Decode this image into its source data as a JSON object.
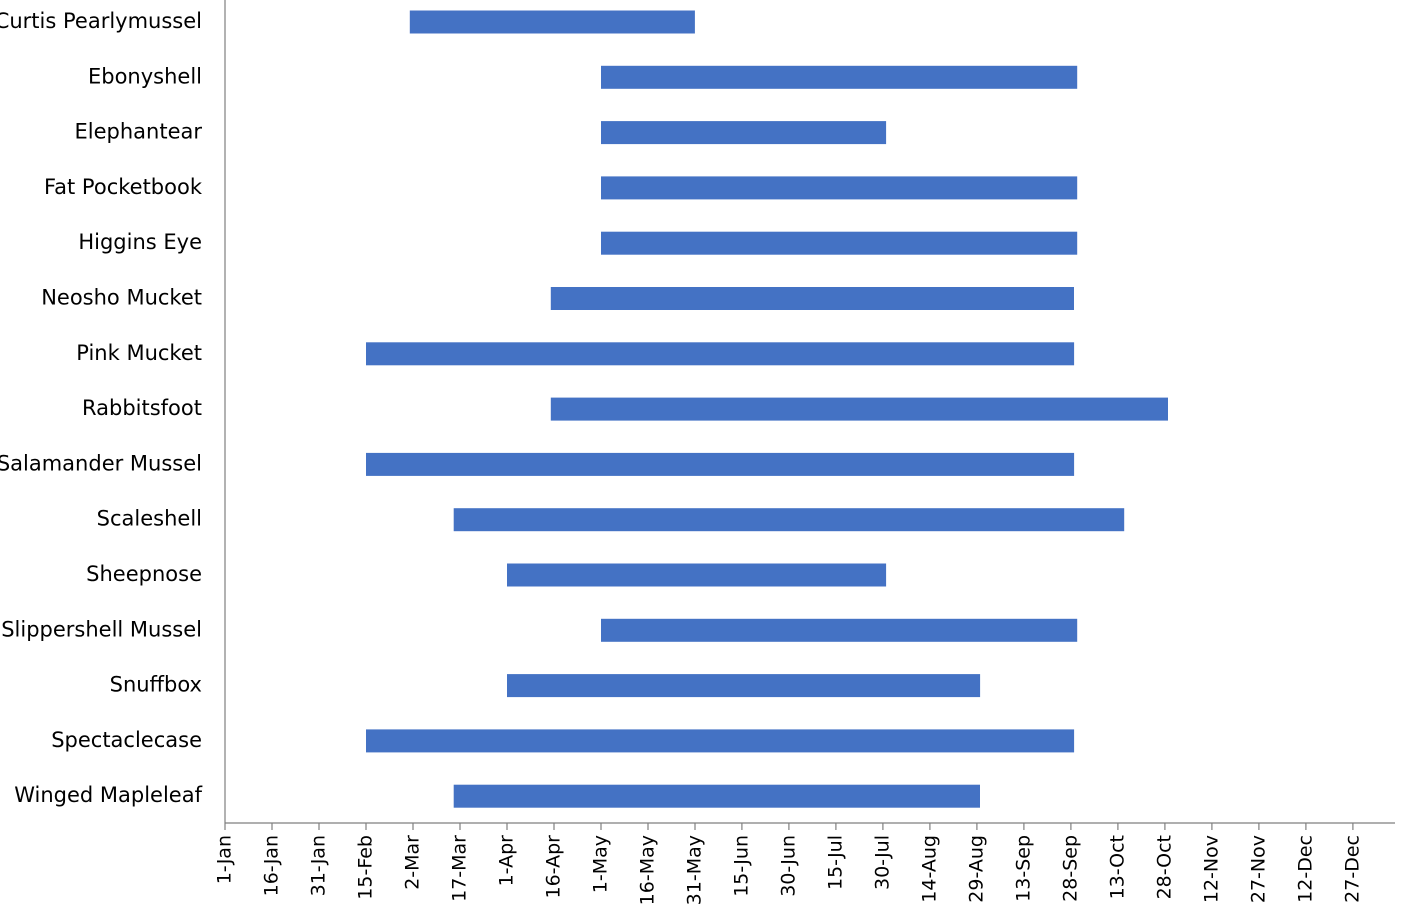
{
  "chart_data": {
    "type": "bar",
    "orientation": "horizontal",
    "style": "range",
    "title": "",
    "xlabel": "",
    "ylabel": "",
    "bar_color": "#4472C4",
    "x_tick_labels": [
      "1-Jan",
      "16-Jan",
      "31-Jan",
      "15-Feb",
      "2-Mar",
      "17-Mar",
      "1-Apr",
      "16-Apr",
      "1-May",
      "16-May",
      "31-May",
      "15-Jun",
      "30-Jun",
      "15-Jul",
      "30-Jul",
      "14-Aug",
      "29-Aug",
      "13-Sep",
      "28-Sep",
      "13-Oct",
      "28-Oct",
      "12-Nov",
      "27-Nov",
      "12-Dec",
      "27-Dec"
    ],
    "xlim_day_of_year": [
      1,
      365
    ],
    "categories": [
      "Curtis Pearlymussel",
      "Ebonyshell",
      "Elephantear",
      "Fat Pocketbook",
      "Higgins Eye",
      "Neosho Mucket",
      "Pink Mucket",
      "Rabbitsfoot",
      "Salamander Mussel",
      "Scaleshell",
      "Sheepnose",
      "Slippershell Mussel",
      "Snuffbox",
      "Spectaclecase",
      "Winged Mapleleaf"
    ],
    "series": [
      {
        "start": [
          "1-Mar",
          "1-May",
          "1-May",
          "1-May",
          "1-May",
          "15-Apr",
          "15-Feb",
          "15-Apr",
          "15-Feb",
          "15-Mar",
          "1-Apr",
          "1-May",
          "1-Apr",
          "15-Feb",
          "15-Mar"
        ],
        "end": [
          "31-May",
          "30-Sep",
          "31-Jul",
          "30-Sep",
          "30-Sep",
          "29-Sep",
          "29-Sep",
          "29-Oct",
          "29-Sep",
          "15-Oct",
          "31-Jul",
          "30-Sep",
          "30-Aug",
          "29-Sep",
          "30-Aug"
        ]
      }
    ],
    "grid": false,
    "legend": "none"
  }
}
